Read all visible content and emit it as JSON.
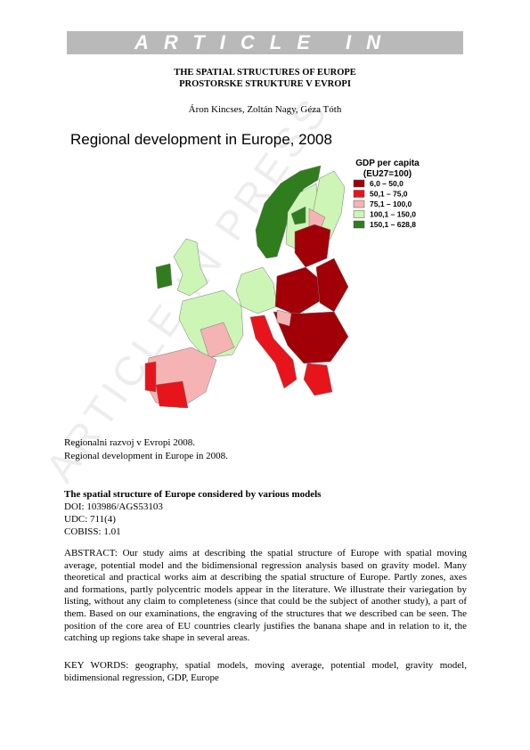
{
  "header": {
    "banner": "ARTICLE IN PRESS",
    "watermark": "ARTICLE IN PRESS",
    "title_lines": [
      "THE SPATIAL STRUCTURES OF EUROPE",
      "PROSTORSKE STRUKTURE V EVROPI"
    ],
    "authors": "Áron Kincses, Zoltán Nagy, Géza Tóth"
  },
  "figure": {
    "title": "Regional development in Europe, 2008",
    "legend": {
      "title_lines": [
        "GDP per capita",
        "(EU27=100)"
      ],
      "items": [
        {
          "label": "6,0 –  50,0",
          "color": "#a10008"
        },
        {
          "label": "50,1 –  75,0",
          "color": "#e8141c"
        },
        {
          "label": "75,1 – 100,0",
          "color": "#f6b3b3"
        },
        {
          "label": "100,1 – 150,0",
          "color": "#cdf5b6"
        },
        {
          "label": "150,1 – 628,8",
          "color": "#2f7d1c"
        }
      ]
    },
    "captions": [
      "Regionalni razvoj v Evropi 2008.",
      "Regional development in Europe in 2008."
    ]
  },
  "article": {
    "heading": "The spatial structure of Europe considered by various models",
    "meta": [
      "DOI: 103986/AGS53103",
      "UDC: 711(4)",
      "COBISS: 1.01"
    ],
    "abstract": "ABSTRACT: Our study aims at describing the spatial structure of Europe with spatial moving average, potential model and the bidimensional regression analysis based on gravity model. Many theoretical and practical works aim at describing the spatial structure of Europe. Partly zones, axes and formations, partly polycentric models appear in the literature. We illustrate their variegation by listing, without any claim to completeness (since that could be the subject of another study), a part of them. Based on our examinations, the engraving of the structures that we described can be seen. The position of the core area of EU countries clearly justifies the banana shape and in relation to it, the catching up regions take shape in several areas.",
    "keywords": "KEY WORDS: geography, spatial models, moving average, potential model, gravity model, bidimensional regression, GDP, Europe"
  }
}
